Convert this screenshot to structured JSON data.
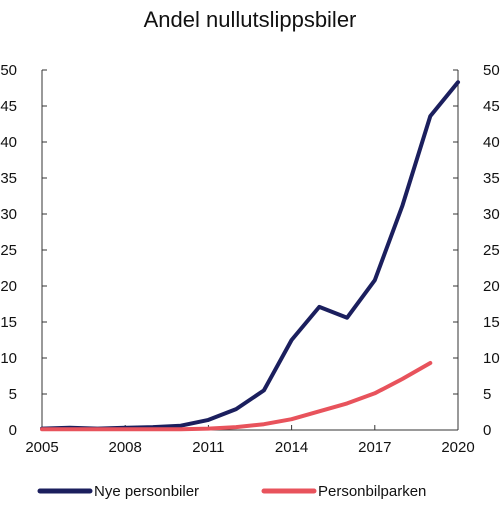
{
  "chart_data": {
    "type": "line",
    "title": "Andel nullutslippsbiler",
    "xlabel": "",
    "ylabel": "",
    "x_ticks": [
      "2005",
      "2008",
      "2011",
      "2014",
      "2017",
      "2020"
    ],
    "y_ticks": [
      "0",
      "5",
      "10",
      "15",
      "20",
      "25",
      "30",
      "35",
      "40",
      "45",
      "50"
    ],
    "xlim": [
      2005,
      2020
    ],
    "ylim": [
      0,
      50
    ],
    "grid": false,
    "legend_position": "bottom",
    "series": [
      {
        "name": "Nye personbiler",
        "color": "#1b1f5e",
        "x": [
          2005,
          2006,
          2007,
          2008,
          2009,
          2010,
          2011,
          2012,
          2013,
          2014,
          2015,
          2016,
          2017,
          2018,
          2019,
          2020
        ],
        "y": [
          0.2,
          0.3,
          0.2,
          0.3,
          0.4,
          0.6,
          1.4,
          2.9,
          5.5,
          12.5,
          17.1,
          15.6,
          20.8,
          31.2,
          43.6,
          48.3
        ]
      },
      {
        "name": "Personbilparken",
        "color": "#e8535c",
        "x": [
          2005,
          2006,
          2007,
          2008,
          2009,
          2010,
          2011,
          2012,
          2013,
          2014,
          2015,
          2016,
          2017,
          2018,
          2019
        ],
        "y": [
          0.1,
          0.1,
          0.1,
          0.1,
          0.1,
          0.1,
          0.2,
          0.4,
          0.8,
          1.5,
          2.6,
          3.7,
          5.1,
          7.1,
          9.3
        ]
      }
    ]
  }
}
